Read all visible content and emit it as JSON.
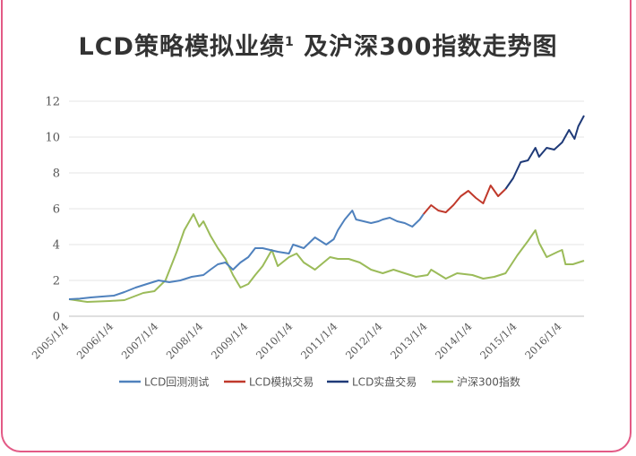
{
  "page": {
    "title_main": "LCD策略模拟业绩",
    "title_sup": "1",
    "title_rest": " 及沪深300指数走势图",
    "frame_color": "#e35a86"
  },
  "chart_data": {
    "type": "line",
    "title": "LCD策略模拟业绩1 及沪深300指数走势图",
    "xlabel": "",
    "ylabel": "",
    "xlim": [
      "2005/1/4",
      "2016/7/1"
    ],
    "ylim": [
      0,
      12
    ],
    "yticks": [
      0,
      2,
      4,
      6,
      8,
      10,
      12
    ],
    "xticks": [
      "2005/1/4",
      "2006/1/4",
      "2007/1/4",
      "2008/1/4",
      "2009/1/4",
      "2010/1/4",
      "2011/1/4",
      "2012/1/4",
      "2013/1/4",
      "2014/1/4",
      "2015/1/4",
      "2016/1/4"
    ],
    "grid": "horizontal",
    "legend": "bottom",
    "series": [
      {
        "name": "LCD回测测试",
        "color": "#4f81bd",
        "points": [
          [
            "2005/1/4",
            0.95
          ],
          [
            "2005/4/1",
            0.98
          ],
          [
            "2005/7/1",
            1.05
          ],
          [
            "2005/10/1",
            1.1
          ],
          [
            "2006/1/4",
            1.15
          ],
          [
            "2006/4/1",
            1.35
          ],
          [
            "2006/7/1",
            1.6
          ],
          [
            "2006/10/1",
            1.8
          ],
          [
            "2007/1/4",
            2.0
          ],
          [
            "2007/4/1",
            1.9
          ],
          [
            "2007/7/1",
            2.0
          ],
          [
            "2007/10/1",
            2.2
          ],
          [
            "2008/1/4",
            2.3
          ],
          [
            "2008/3/1",
            2.6
          ],
          [
            "2008/5/1",
            2.9
          ],
          [
            "2008/7/1",
            3.0
          ],
          [
            "2008/9/1",
            2.6
          ],
          [
            "2008/11/1",
            3.0
          ],
          [
            "2009/1/4",
            3.3
          ],
          [
            "2009/3/1",
            3.8
          ],
          [
            "2009/5/1",
            3.8
          ],
          [
            "2009/7/1",
            3.7
          ],
          [
            "2009/9/1",
            3.6
          ],
          [
            "2009/12/1",
            3.5
          ],
          [
            "2010/1/4",
            4.0
          ],
          [
            "2010/4/1",
            3.8
          ],
          [
            "2010/7/1",
            4.4
          ],
          [
            "2010/10/1",
            4.0
          ],
          [
            "2010/12/1",
            4.3
          ],
          [
            "2011/1/4",
            4.8
          ],
          [
            "2011/3/1",
            5.4
          ],
          [
            "2011/5/1",
            5.9
          ],
          [
            "2011/6/1",
            5.4
          ],
          [
            "2011/8/1",
            5.3
          ],
          [
            "2011/10/1",
            5.2
          ],
          [
            "2011/12/1",
            5.3
          ],
          [
            "2012/1/4",
            5.4
          ],
          [
            "2012/3/1",
            5.5
          ],
          [
            "2012/5/1",
            5.3
          ],
          [
            "2012/7/1",
            5.2
          ],
          [
            "2012/9/1",
            5.0
          ],
          [
            "2012/11/1",
            5.4
          ],
          [
            "2012/12/1",
            5.7
          ]
        ]
      },
      {
        "name": "LCD模拟交易",
        "color": "#c0392b",
        "points": [
          [
            "2012/12/1",
            5.7
          ],
          [
            "2013/2/1",
            6.2
          ],
          [
            "2013/4/1",
            5.9
          ],
          [
            "2013/6/1",
            5.8
          ],
          [
            "2013/8/1",
            6.2
          ],
          [
            "2013/10/1",
            6.7
          ],
          [
            "2013/12/1",
            7.0
          ],
          [
            "2014/2/1",
            6.6
          ],
          [
            "2014/4/1",
            6.3
          ],
          [
            "2014/6/1",
            7.3
          ],
          [
            "2014/8/1",
            6.7
          ],
          [
            "2014/10/1",
            7.1
          ]
        ]
      },
      {
        "name": "LCD实盘交易",
        "color": "#1f3a78",
        "points": [
          [
            "2014/10/1",
            7.1
          ],
          [
            "2014/12/1",
            7.7
          ],
          [
            "2015/2/1",
            8.6
          ],
          [
            "2015/4/1",
            8.7
          ],
          [
            "2015/6/1",
            9.4
          ],
          [
            "2015/7/1",
            8.9
          ],
          [
            "2015/9/1",
            9.4
          ],
          [
            "2015/11/1",
            9.3
          ],
          [
            "2016/1/4",
            9.7
          ],
          [
            "2016/3/1",
            10.4
          ],
          [
            "2016/4/15",
            9.9
          ],
          [
            "2016/5/15",
            10.6
          ],
          [
            "2016/7/1",
            11.2
          ]
        ]
      },
      {
        "name": "沪深300指数",
        "color": "#9bbb59",
        "points": [
          [
            "2005/1/4",
            0.95
          ],
          [
            "2005/6/1",
            0.8
          ],
          [
            "2005/12/1",
            0.85
          ],
          [
            "2006/4/1",
            0.9
          ],
          [
            "2006/9/1",
            1.3
          ],
          [
            "2006/12/1",
            1.4
          ],
          [
            "2007/3/1",
            2.0
          ],
          [
            "2007/6/1",
            3.6
          ],
          [
            "2007/8/1",
            4.8
          ],
          [
            "2007/10/15",
            5.7
          ],
          [
            "2007/12/1",
            5.0
          ],
          [
            "2008/1/4",
            5.3
          ],
          [
            "2008/3/1",
            4.5
          ],
          [
            "2008/5/1",
            3.8
          ],
          [
            "2008/7/1",
            3.2
          ],
          [
            "2008/9/1",
            2.3
          ],
          [
            "2008/11/1",
            1.6
          ],
          [
            "2009/1/4",
            1.8
          ],
          [
            "2009/3/1",
            2.3
          ],
          [
            "2009/5/1",
            2.8
          ],
          [
            "2009/7/15",
            3.7
          ],
          [
            "2009/9/1",
            2.8
          ],
          [
            "2009/12/1",
            3.3
          ],
          [
            "2010/2/1",
            3.5
          ],
          [
            "2010/4/1",
            3.0
          ],
          [
            "2010/7/1",
            2.6
          ],
          [
            "2010/11/1",
            3.3
          ],
          [
            "2011/1/4",
            3.2
          ],
          [
            "2011/4/1",
            3.2
          ],
          [
            "2011/7/1",
            3.0
          ],
          [
            "2011/10/1",
            2.6
          ],
          [
            "2012/1/4",
            2.4
          ],
          [
            "2012/4/1",
            2.6
          ],
          [
            "2012/7/1",
            2.4
          ],
          [
            "2012/10/1",
            2.2
          ],
          [
            "2013/1/4",
            2.3
          ],
          [
            "2013/2/1",
            2.6
          ],
          [
            "2013/6/1",
            2.1
          ],
          [
            "2013/9/1",
            2.4
          ],
          [
            "2014/1/4",
            2.3
          ],
          [
            "2014/4/1",
            2.1
          ],
          [
            "2014/7/1",
            2.2
          ],
          [
            "2014/10/1",
            2.4
          ],
          [
            "2015/1/4",
            3.4
          ],
          [
            "2015/4/1",
            4.2
          ],
          [
            "2015/6/1",
            4.8
          ],
          [
            "2015/7/1",
            4.1
          ],
          [
            "2015/9/1",
            3.3
          ],
          [
            "2015/12/1",
            3.6
          ],
          [
            "2016/1/4",
            3.7
          ],
          [
            "2016/2/1",
            2.9
          ],
          [
            "2016/4/1",
            2.9
          ],
          [
            "2016/7/1",
            3.1
          ]
        ]
      }
    ]
  }
}
